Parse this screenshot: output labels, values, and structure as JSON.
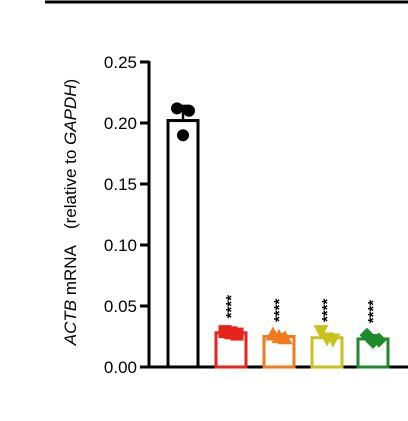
{
  "chart_data": {
    "type": "bar",
    "ylabel": {
      "gene": "ACTB",
      "middle": " mRNA　(relative to ",
      "ref": "GAPDH",
      "end": ")"
    },
    "ylim": [
      0,
      0.25
    ],
    "yticks": [
      "0.00",
      "0.05",
      "0.10",
      "0.15",
      "0.20",
      "0.25"
    ],
    "yticks_values": [
      0,
      0.05,
      0.1,
      0.15,
      0.2,
      0.25
    ],
    "grid": false,
    "legend": "none",
    "bars": [
      {
        "value": 0.202,
        "error": 0.012,
        "color": "#000000",
        "marker": "circle",
        "points": [
          0.212,
          0.21,
          0.19
        ],
        "annotation": ""
      },
      {
        "value": 0.028,
        "error": 0.002,
        "color": "#e8231c",
        "marker": "square",
        "points": [
          0.029,
          0.027,
          0.028
        ],
        "annotation": "****"
      },
      {
        "value": 0.025,
        "error": 0.002,
        "color": "#f27a1b",
        "marker": "triangle-up",
        "points": [
          0.027,
          0.024,
          0.025
        ],
        "annotation": "****"
      },
      {
        "value": 0.024,
        "error": 0.003,
        "color": "#c8c21a",
        "marker": "triangle-down",
        "points": [
          0.029,
          0.022,
          0.023
        ],
        "annotation": "****"
      },
      {
        "value": 0.023,
        "error": 0.003,
        "color": "#1f8a2a",
        "marker": "diamond",
        "points": [
          0.026,
          0.022,
          0.021
        ],
        "annotation": "****"
      }
    ]
  }
}
